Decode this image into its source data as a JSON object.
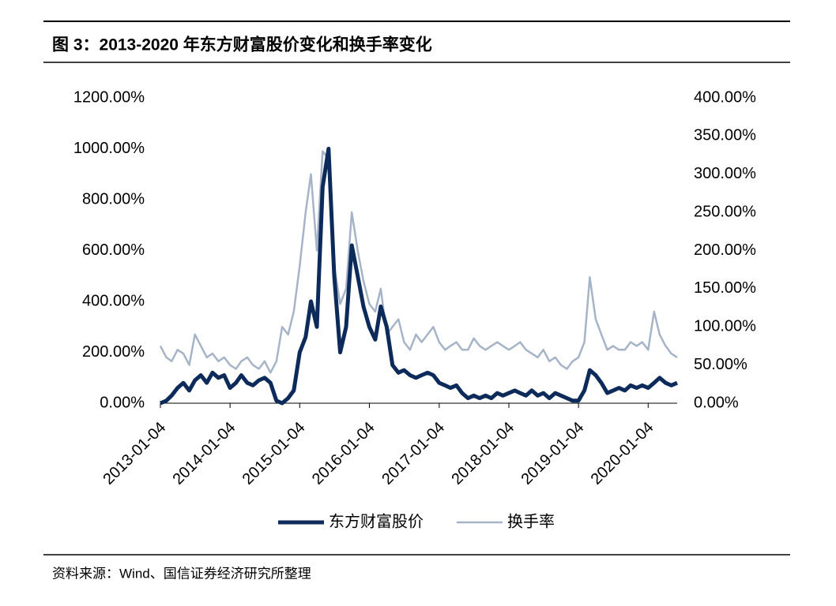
{
  "chart_data": {
    "type": "line",
    "title": "图 3：2013-2020 年东方财富股价变化和换手率变化",
    "source": "资料来源：Wind、国信证券经济研究所整理",
    "x": [
      "2013-01-04",
      "2013-02-04",
      "2013-03-04",
      "2013-04-04",
      "2013-05-04",
      "2013-06-04",
      "2013-07-04",
      "2013-08-04",
      "2013-09-04",
      "2013-10-04",
      "2013-11-04",
      "2013-12-04",
      "2014-01-04",
      "2014-02-04",
      "2014-03-04",
      "2014-04-04",
      "2014-05-04",
      "2014-06-04",
      "2014-07-04",
      "2014-08-04",
      "2014-09-04",
      "2014-10-04",
      "2014-11-04",
      "2014-12-04",
      "2015-01-04",
      "2015-02-04",
      "2015-03-04",
      "2015-04-04",
      "2015-05-04",
      "2015-06-04",
      "2015-07-04",
      "2015-08-04",
      "2015-09-04",
      "2015-10-04",
      "2015-11-04",
      "2015-12-04",
      "2016-01-04",
      "2016-02-04",
      "2016-03-04",
      "2016-04-04",
      "2016-05-04",
      "2016-06-04",
      "2016-07-04",
      "2016-08-04",
      "2016-09-04",
      "2016-10-04",
      "2016-11-04",
      "2016-12-04",
      "2017-01-04",
      "2017-02-04",
      "2017-03-04",
      "2017-04-04",
      "2017-05-04",
      "2017-06-04",
      "2017-07-04",
      "2017-08-04",
      "2017-09-04",
      "2017-10-04",
      "2017-11-04",
      "2017-12-04",
      "2018-01-04",
      "2018-02-04",
      "2018-03-04",
      "2018-04-04",
      "2018-05-04",
      "2018-06-04",
      "2018-07-04",
      "2018-08-04",
      "2018-09-04",
      "2018-10-04",
      "2018-11-04",
      "2018-12-04",
      "2019-01-04",
      "2019-02-04",
      "2019-03-04",
      "2019-04-04",
      "2019-05-04",
      "2019-06-04",
      "2019-07-04",
      "2019-08-04",
      "2019-09-04",
      "2019-10-04",
      "2019-11-04",
      "2019-12-04",
      "2020-01-04",
      "2020-02-04",
      "2020-03-04",
      "2020-04-04",
      "2020-05-04",
      "2020-06-04"
    ],
    "xlim": [
      "2013-01-04",
      "2020-06-04"
    ],
    "xticks": [
      "2013-01-04",
      "2014-01-04",
      "2015-01-04",
      "2016-01-04",
      "2017-01-04",
      "2018-01-04",
      "2019-01-04",
      "2020-01-04"
    ],
    "ylim": [
      0,
      1200
    ],
    "yticks": [
      {
        "value": 0,
        "label": "0.00%"
      },
      {
        "value": 200,
        "label": "200.00%"
      },
      {
        "value": 400,
        "label": "400.00%"
      },
      {
        "value": 600,
        "label": "600.00%"
      },
      {
        "value": 800,
        "label": "800.00%"
      },
      {
        "value": 1000,
        "label": "1000.00%"
      },
      {
        "value": 1200,
        "label": "1200.00%"
      }
    ],
    "y2lim": [
      0,
      400
    ],
    "y2ticks": [
      {
        "value": 0,
        "label": "0.00%"
      },
      {
        "value": 50,
        "label": "50.00%"
      },
      {
        "value": 100,
        "label": "100.00%"
      },
      {
        "value": 150,
        "label": "150.00%"
      },
      {
        "value": 200,
        "label": "200.00%"
      },
      {
        "value": 250,
        "label": "250.00%"
      },
      {
        "value": 300,
        "label": "300.00%"
      },
      {
        "value": 350,
        "label": "350.00%"
      },
      {
        "value": 400,
        "label": "400.00%"
      }
    ],
    "series": [
      {
        "name": "换手率",
        "color": "#a6b4c8",
        "axis": "y2",
        "width": 2.5,
        "values": [
          75,
          60,
          55,
          70,
          65,
          50,
          90,
          75,
          60,
          65,
          55,
          60,
          50,
          45,
          55,
          60,
          50,
          45,
          55,
          40,
          55,
          100,
          90,
          120,
          180,
          250,
          300,
          200,
          330,
          320,
          180,
          130,
          150,
          250,
          200,
          160,
          130,
          120,
          150,
          90,
          100,
          110,
          80,
          70,
          90,
          80,
          90,
          100,
          80,
          70,
          75,
          80,
          70,
          70,
          85,
          75,
          70,
          75,
          80,
          75,
          70,
          75,
          80,
          70,
          65,
          60,
          70,
          55,
          60,
          50,
          45,
          55,
          60,
          80,
          165,
          110,
          90,
          70,
          75,
          70,
          70,
          80,
          75,
          80,
          70,
          120,
          90,
          75,
          65,
          60
        ]
      },
      {
        "name": "东方财富股价",
        "color": "#0d2b5a",
        "axis": "y",
        "width": 5,
        "values": [
          0,
          10,
          30,
          60,
          80,
          50,
          90,
          110,
          80,
          120,
          100,
          110,
          60,
          80,
          110,
          80,
          70,
          90,
          100,
          80,
          10,
          0,
          20,
          50,
          200,
          260,
          400,
          300,
          850,
          1000,
          500,
          200,
          300,
          620,
          500,
          380,
          300,
          250,
          380,
          300,
          150,
          120,
          130,
          110,
          100,
          110,
          120,
          110,
          80,
          70,
          60,
          70,
          40,
          20,
          30,
          20,
          30,
          20,
          40,
          30,
          40,
          50,
          40,
          30,
          50,
          30,
          40,
          20,
          40,
          30,
          20,
          10,
          10,
          50,
          130,
          110,
          80,
          40,
          50,
          60,
          50,
          70,
          60,
          70,
          60,
          80,
          100,
          80,
          70,
          80
        ]
      }
    ]
  }
}
